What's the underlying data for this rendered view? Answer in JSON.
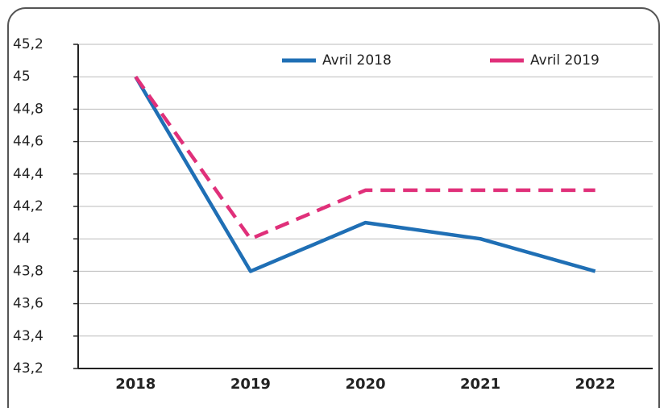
{
  "chart_data": {
    "type": "line",
    "categories": [
      "2018",
      "2019",
      "2020",
      "2021",
      "2022"
    ],
    "series": [
      {
        "name": "Avril 2018",
        "color": "#1f6fb5",
        "dash": false,
        "values": [
          45,
          43.8,
          44.1,
          44.0,
          43.8
        ]
      },
      {
        "name": "Avril 2019",
        "color": "#e0307a",
        "dash": true,
        "values": [
          45,
          44.0,
          44.3,
          44.3,
          44.3
        ]
      }
    ],
    "ylim": [
      43.2,
      45.2
    ],
    "yticks": [
      {
        "value": 43.2,
        "label": "43,2"
      },
      {
        "value": 43.4,
        "label": "43,4"
      },
      {
        "value": 43.6,
        "label": "43,6"
      },
      {
        "value": 43.8,
        "label": "43,8"
      },
      44,
      {
        "value": 44.2,
        "label": "44,2"
      },
      {
        "value": 44.4,
        "label": "44,4"
      },
      {
        "value": 44.6,
        "label": "44,6"
      },
      {
        "value": 44.8,
        "label": "44,8"
      },
      45,
      {
        "value": 45.2,
        "label": "45,2"
      }
    ],
    "grid": true,
    "legend": "top"
  }
}
